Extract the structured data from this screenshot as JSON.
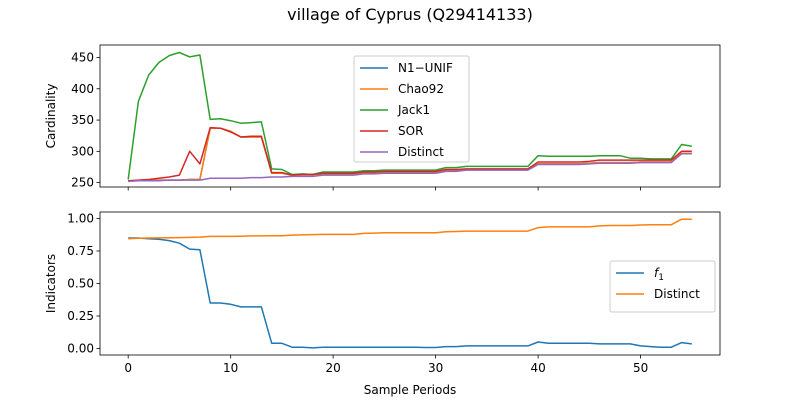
{
  "title": "village of Cyprus (Q29414133)",
  "chart_data": [
    {
      "type": "line",
      "ylabel": "Cardinality",
      "xlabel": "",
      "xlim": [
        -2.75,
        57.75
      ],
      "ylim": [
        243,
        470
      ],
      "yticks": [
        250,
        300,
        350,
        400,
        450
      ],
      "xticks": [
        0,
        10,
        20,
        30,
        40,
        50
      ],
      "show_xtick_labels": false,
      "legend_position": "top-center",
      "x": [
        0,
        1,
        2,
        3,
        4,
        5,
        6,
        7,
        8,
        9,
        10,
        11,
        12,
        13,
        14,
        15,
        16,
        17,
        18,
        19,
        20,
        21,
        22,
        23,
        24,
        25,
        26,
        27,
        28,
        29,
        30,
        31,
        32,
        33,
        34,
        35,
        36,
        37,
        38,
        39,
        40,
        41,
        42,
        43,
        44,
        45,
        46,
        47,
        48,
        49,
        50,
        51,
        52,
        53,
        54,
        55
      ],
      "series": [
        {
          "name": "N1−UNIF",
          "color": "#1f77b4",
          "values": [
            253,
            253,
            254,
            254,
            254,
            254,
            255,
            255,
            337,
            337,
            332,
            323,
            323,
            323,
            265,
            265,
            262,
            263,
            263,
            264,
            264,
            264,
            264,
            266,
            266,
            267,
            267,
            267,
            267,
            267,
            267,
            270,
            270,
            271,
            271,
            271,
            271,
            271,
            271,
            271,
            280,
            280,
            280,
            280,
            280,
            281,
            282,
            282,
            282,
            282,
            283,
            283,
            283,
            283,
            297,
            297
          ]
        },
        {
          "name": "Chao92",
          "color": "#ff7f0e",
          "values": [
            253,
            253,
            254,
            254,
            254,
            254,
            255,
            255,
            337,
            337,
            332,
            323,
            323,
            323,
            265,
            265,
            262,
            263,
            263,
            264,
            264,
            264,
            264,
            266,
            266,
            267,
            267,
            267,
            267,
            267,
            267,
            270,
            270,
            271,
            271,
            271,
            271,
            271,
            271,
            271,
            280,
            280,
            280,
            280,
            280,
            281,
            282,
            282,
            282,
            282,
            283,
            283,
            283,
            283,
            297,
            297
          ]
        },
        {
          "name": "Jack1",
          "color": "#2ca02c",
          "values": [
            255,
            380,
            422,
            442,
            453,
            458,
            451,
            454,
            351,
            352,
            349,
            345,
            346,
            347,
            272,
            271,
            263,
            264,
            263,
            267,
            267,
            267,
            267,
            269,
            269,
            270,
            270,
            270,
            270,
            270,
            270,
            274,
            274,
            276,
            276,
            276,
            276,
            276,
            276,
            276,
            293,
            292,
            292,
            292,
            292,
            292,
            293,
            293,
            293,
            289,
            289,
            288,
            288,
            288,
            311,
            308
          ]
        },
        {
          "name": "SOR",
          "color": "#d62728",
          "values": [
            253,
            254,
            255,
            257,
            259,
            262,
            300,
            280,
            338,
            337,
            331,
            323,
            324,
            324,
            266,
            266,
            262,
            263,
            263,
            265,
            265,
            265,
            265,
            267,
            267,
            268,
            268,
            268,
            268,
            268,
            268,
            271,
            271,
            272,
            272,
            272,
            272,
            272,
            272,
            272,
            283,
            283,
            283,
            283,
            283,
            284,
            286,
            286,
            286,
            286,
            286,
            286,
            286,
            286,
            300,
            300
          ]
        },
        {
          "name": "Distinct",
          "color": "#9467bd",
          "values": [
            252,
            253,
            253,
            253,
            254,
            254,
            254,
            254,
            257,
            257,
            257,
            257,
            258,
            258,
            259,
            259,
            260,
            260,
            260,
            262,
            262,
            262,
            262,
            264,
            264,
            265,
            265,
            265,
            265,
            265,
            265,
            268,
            268,
            270,
            270,
            270,
            270,
            270,
            270,
            270,
            279,
            279,
            279,
            279,
            279,
            280,
            281,
            281,
            281,
            281,
            282,
            282,
            282,
            282,
            296,
            296
          ]
        }
      ]
    },
    {
      "type": "line",
      "ylabel": "Indicators",
      "xlabel": "Sample Periods",
      "xlim": [
        -2.75,
        57.75
      ],
      "ylim": [
        -0.05,
        1.05
      ],
      "yticks": [
        0.0,
        0.25,
        0.5,
        0.75,
        1.0
      ],
      "ytick_labels": [
        "0.00",
        "0.25",
        "0.50",
        "0.75",
        "1.00"
      ],
      "xticks": [
        0,
        10,
        20,
        30,
        40,
        50
      ],
      "show_xtick_labels": true,
      "legend_position": "center-right",
      "x": [
        0,
        1,
        2,
        3,
        4,
        5,
        6,
        7,
        8,
        9,
        10,
        11,
        12,
        13,
        14,
        15,
        16,
        17,
        18,
        19,
        20,
        21,
        22,
        23,
        24,
        25,
        26,
        27,
        28,
        29,
        30,
        31,
        32,
        33,
        34,
        35,
        36,
        37,
        38,
        39,
        40,
        41,
        42,
        43,
        44,
        45,
        46,
        47,
        48,
        49,
        50,
        51,
        52,
        53,
        54,
        55
      ],
      "series": [
        {
          "name": "f1",
          "color": "#1f77b4",
          "values": [
            0.85,
            0.85,
            0.845,
            0.84,
            0.83,
            0.81,
            0.765,
            0.76,
            0.35,
            0.35,
            0.34,
            0.32,
            0.32,
            0.32,
            0.04,
            0.04,
            0.01,
            0.01,
            0.005,
            0.01,
            0.01,
            0.01,
            0.01,
            0.01,
            0.01,
            0.01,
            0.01,
            0.01,
            0.01,
            0.008,
            0.008,
            0.015,
            0.015,
            0.02,
            0.02,
            0.02,
            0.02,
            0.02,
            0.02,
            0.02,
            0.05,
            0.04,
            0.04,
            0.04,
            0.04,
            0.04,
            0.035,
            0.035,
            0.035,
            0.035,
            0.02,
            0.015,
            0.01,
            0.01,
            0.045,
            0.035
          ]
        },
        {
          "name": "Distinct",
          "color": "#ff7f0e",
          "values": [
            0.845,
            0.848,
            0.85,
            0.851,
            0.852,
            0.853,
            0.855,
            0.857,
            0.862,
            0.862,
            0.862,
            0.864,
            0.866,
            0.866,
            0.868,
            0.868,
            0.872,
            0.874,
            0.876,
            0.878,
            0.878,
            0.878,
            0.878,
            0.885,
            0.888,
            0.89,
            0.89,
            0.89,
            0.89,
            0.89,
            0.89,
            0.898,
            0.9,
            0.903,
            0.903,
            0.903,
            0.903,
            0.903,
            0.903,
            0.903,
            0.93,
            0.935,
            0.935,
            0.935,
            0.935,
            0.935,
            0.943,
            0.946,
            0.946,
            0.946,
            0.95,
            0.952,
            0.952,
            0.952,
            0.995,
            0.995
          ]
        }
      ]
    }
  ]
}
